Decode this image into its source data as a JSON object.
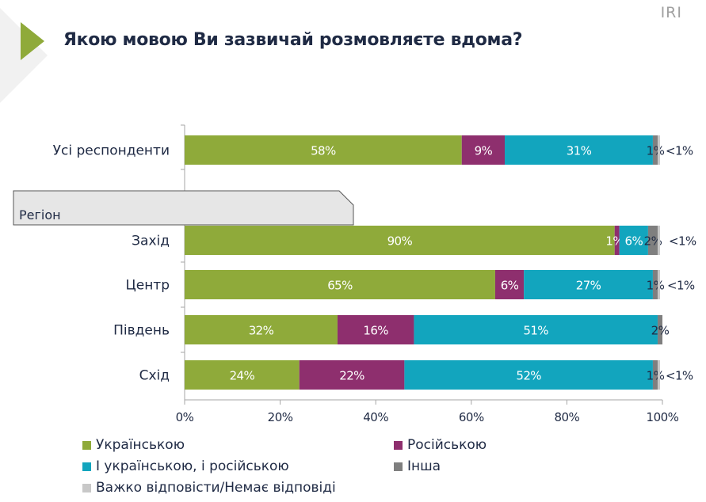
{
  "header": {
    "title": "Якою мовою Ви зазвичай розмовляєте вдома?",
    "brand": "IRI",
    "arrow_color": "#8faa3a"
  },
  "chart_data": {
    "type": "bar",
    "orientation": "horizontal",
    "stacked": true,
    "title": "Якою мовою Ви зазвичай розмовляєте вдома?",
    "group_label": "Регіон",
    "categories": [
      "Усі респонденти",
      "Захід",
      "Центр",
      "Південь",
      "Схід"
    ],
    "xlim": [
      0,
      100
    ],
    "xticks": [
      "0%",
      "20%",
      "40%",
      "60%",
      "80%",
      "100%"
    ],
    "grid": false,
    "legend_position": "bottom",
    "series": [
      {
        "name": "Українською",
        "color": "#8faa3a",
        "values": [
          58,
          90,
          65,
          32,
          24
        ],
        "labels": [
          "58%",
          "90%",
          "65%",
          "32%",
          "24%"
        ]
      },
      {
        "name": "Російською",
        "color": "#8e2f6e",
        "values": [
          9,
          1,
          6,
          16,
          22
        ],
        "labels": [
          "9%",
          "1%",
          "6%",
          "16%",
          "22%"
        ]
      },
      {
        "name": "І українською, і російською",
        "color": "#12a5be",
        "values": [
          31,
          6,
          27,
          51,
          52
        ],
        "labels": [
          "31%",
          "6%",
          "27%",
          "51%",
          "52%"
        ]
      },
      {
        "name": "Інша",
        "color": "#7f7f7f",
        "values": [
          1,
          2,
          1,
          2,
          1
        ],
        "labels": [
          "1%",
          "2%",
          "1%",
          "2%",
          "1%"
        ]
      },
      {
        "name": "Важко відповісти/Немає відповіді",
        "color": "#c8c8c8",
        "values": [
          0.5,
          0.5,
          0.5,
          0,
          0.5
        ],
        "labels": [
          "<1%",
          "<1%",
          "<1%",
          "",
          "<1%"
        ]
      }
    ]
  }
}
